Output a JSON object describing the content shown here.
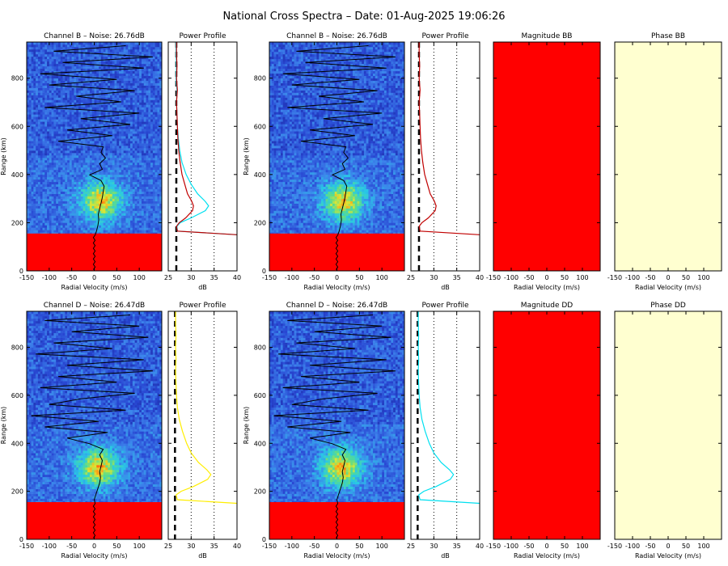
{
  "title": "National Cross Spectra – Date: 01-Aug-2025 19:06:26",
  "colors": {
    "spectra_low": "#1e40c8",
    "spectra_high": "#ff2a00",
    "no_data_fill": "#ff0000",
    "magnitude_fill": "#ff0000",
    "phase_fill": "#ffffd0",
    "profile_channel_b_left": "#c00000",
    "profile_channel_b_right": "#c00000",
    "profile_channel_b_overlay": "#00e0f0",
    "profile_channel_d_left": "#ffee00",
    "profile_channel_d_right": "#00e0f0",
    "noise_line": "#000000"
  },
  "chart_data": [
    {
      "type": "heatmap",
      "id": "spec-b-left",
      "title": "Channel B – Noise: 26.76dB",
      "xlabel": "Radial Velocity (m/s)",
      "ylabel": "Range (km)",
      "xlim": [
        -150,
        150
      ],
      "ylim": [
        0,
        950
      ],
      "xticks": [
        -150,
        -100,
        -50,
        0,
        50,
        100
      ],
      "yticks": [
        0,
        200,
        400,
        600,
        800
      ],
      "noise_db": 26.76,
      "no_data_below_km": 155,
      "signal_peak_range_km": 290,
      "signal_peak_velocity_ms": 15,
      "doppler_trace_velocity_ms": [
        5,
        8,
        10,
        9,
        12,
        15,
        18,
        20,
        22,
        15,
        -10,
        18,
        12,
        25,
        15,
        20,
        -80,
        40,
        -60,
        80,
        -30,
        100,
        -110,
        60,
        -40,
        90,
        -100,
        50,
        -120,
        110,
        -70,
        130,
        -90,
        70
      ]
    },
    {
      "type": "line",
      "id": "prof-b-left",
      "title": "Power Profile",
      "xlabel": "dB",
      "xlim": [
        25,
        40
      ],
      "ylim": [
        0,
        950
      ],
      "xticks": [
        25,
        30,
        35,
        40
      ],
      "noise_db": 26.76,
      "series": [
        {
          "range_km": [
            150,
            165,
            185,
            200,
            220,
            250,
            270,
            290,
            320,
            360,
            400,
            450,
            500,
            550,
            600,
            650,
            700,
            750,
            800,
            850,
            900,
            950
          ],
          "db": [
            40,
            27,
            26.8,
            27.4,
            28.8,
            30.3,
            30.5,
            30.1,
            29.2,
            28.6,
            28.0,
            27.6,
            27.3,
            27.1,
            27.0,
            26.9,
            26.8,
            27.0,
            26.8,
            26.9,
            26.8,
            26.8
          ]
        },
        {
          "range_km": [
            150,
            165,
            185,
            200,
            220,
            250,
            270,
            290,
            320,
            360,
            400,
            450,
            500,
            550,
            600,
            650,
            700,
            750,
            800,
            850,
            900,
            950
          ],
          "db": [
            40,
            27,
            26.9,
            27.6,
            30.0,
            33.1,
            33.8,
            33.0,
            31.4,
            30.0,
            28.9,
            28.0,
            27.5,
            27.2,
            27.0,
            26.9,
            26.8,
            26.9,
            26.7,
            26.8,
            26.7,
            26.7
          ]
        }
      ]
    },
    {
      "type": "heatmap",
      "id": "spec-b-right",
      "title": "Channel B – Noise: 26.76dB",
      "xlabel": "Radial Velocity (m/s)",
      "ylabel": "Range (km)",
      "xlim": [
        -150,
        150
      ],
      "ylim": [
        0,
        950
      ],
      "xticks": [
        -150,
        -100,
        -50,
        0,
        50,
        100
      ],
      "yticks": [
        0,
        200,
        400,
        600,
        800
      ],
      "noise_db": 26.76,
      "no_data_below_km": 155,
      "signal_peak_range_km": 290,
      "signal_peak_velocity_ms": 15,
      "doppler_trace_velocity_ms": [
        5,
        8,
        10,
        9,
        12,
        15,
        18,
        20,
        22,
        15,
        -10,
        18,
        12,
        25,
        15,
        20,
        -80,
        40,
        -60,
        80,
        -30,
        100,
        -110,
        60,
        -40,
        90,
        -100,
        50,
        -120,
        110,
        -70,
        130,
        -90,
        70
      ]
    },
    {
      "type": "line",
      "id": "prof-b-right",
      "title": "Power Profile",
      "xlabel": "dB",
      "xlim": [
        25,
        40
      ],
      "ylim": [
        0,
        950
      ],
      "xticks": [
        25,
        30,
        35,
        40
      ],
      "noise_db": 26.76,
      "series": [
        {
          "range_km": [
            150,
            165,
            185,
            200,
            220,
            250,
            270,
            290,
            320,
            360,
            400,
            450,
            500,
            550,
            600,
            650,
            700,
            750,
            800,
            850,
            900,
            950
          ],
          "db": [
            40,
            27,
            26.8,
            27.4,
            28.8,
            30.3,
            30.5,
            30.1,
            29.2,
            28.6,
            28.0,
            27.6,
            27.3,
            27.1,
            27.0,
            26.9,
            26.8,
            27.0,
            26.8,
            26.9,
            26.8,
            26.8
          ]
        }
      ]
    },
    {
      "type": "heatmap",
      "id": "mag-bb",
      "title": "Magnitude BB",
      "xlabel": "Radial Velocity (m/s)",
      "xlim": [
        -150,
        150
      ],
      "ylim": [
        0,
        950
      ],
      "xticks": [
        -150,
        -100,
        -50,
        0,
        50,
        100
      ],
      "uniform": true
    },
    {
      "type": "heatmap",
      "id": "phase-bb",
      "title": "Phase BB",
      "xlabel": "Radial Velocity (m/s)",
      "xlim": [
        -150,
        150
      ],
      "ylim": [
        0,
        950
      ],
      "xticks": [
        -150,
        -100,
        -50,
        0,
        50,
        100
      ],
      "uniform": true
    },
    {
      "type": "heatmap",
      "id": "spec-d-left",
      "title": "Channel D – Noise: 26.47dB",
      "xlabel": "Radial Velocity (m/s)",
      "ylabel": "Range (km)",
      "xlim": [
        -150,
        150
      ],
      "ylim": [
        0,
        950
      ],
      "xticks": [
        -150,
        -100,
        -50,
        0,
        50,
        100
      ],
      "yticks": [
        0,
        200,
        400,
        600,
        800
      ],
      "noise_db": 26.47,
      "no_data_below_km": 155,
      "signal_peak_range_km": 300,
      "signal_peak_velocity_ms": 10,
      "doppler_trace_velocity_ms": [
        0,
        4,
        8,
        12,
        14,
        12,
        15,
        18,
        12,
        20,
        -10,
        -60,
        30,
        -110,
        10,
        -140,
        70,
        -100,
        -30,
        90,
        -120,
        50,
        -80,
        130,
        -60,
        110,
        -130,
        40,
        -90,
        120,
        -50,
        100,
        -110,
        80
      ]
    },
    {
      "type": "line",
      "id": "prof-d-left",
      "title": "Power Profile",
      "xlabel": "dB",
      "xlim": [
        25,
        40
      ],
      "ylim": [
        0,
        950
      ],
      "xticks": [
        25,
        30,
        35,
        40
      ],
      "noise_db": 26.47,
      "series": [
        {
          "range_km": [
            150,
            165,
            185,
            200,
            220,
            250,
            270,
            290,
            320,
            360,
            400,
            450,
            500,
            550,
            600,
            650,
            700,
            750,
            800,
            850,
            900,
            950
          ],
          "db": [
            40,
            27,
            26.7,
            27.8,
            30.5,
            33.6,
            34.3,
            33.4,
            31.6,
            30.0,
            29.0,
            28.1,
            27.4,
            27.0,
            26.8,
            26.7,
            26.6,
            26.7,
            26.6,
            26.7,
            26.6,
            26.6
          ]
        }
      ]
    },
    {
      "type": "line",
      "id": "prof-d-right",
      "title": "Power Profile",
      "xlabel": "dB",
      "xlim": [
        25,
        40
      ],
      "ylim": [
        0,
        950
      ],
      "xticks": [
        25,
        30,
        35,
        40
      ],
      "noise_db": 26.47,
      "series": [
        {
          "range_km": [
            150,
            165,
            185,
            200,
            220,
            250,
            270,
            290,
            320,
            360,
            400,
            450,
            500,
            550,
            600,
            650,
            700,
            750,
            800,
            850,
            900,
            950
          ],
          "db": [
            40,
            27,
            26.7,
            27.8,
            30.5,
            33.6,
            34.3,
            33.4,
            31.6,
            30.0,
            29.0,
            28.1,
            27.4,
            27.0,
            26.8,
            26.7,
            26.6,
            26.7,
            26.6,
            26.7,
            26.6,
            26.6
          ]
        }
      ]
    },
    {
      "type": "heatmap",
      "id": "spec-d-right",
      "title": "Channel D – Noise: 26.47dB",
      "xlabel": "Radial Velocity (m/s)",
      "ylabel": "Range (km)",
      "xlim": [
        -150,
        150
      ],
      "ylim": [
        0,
        950
      ],
      "xticks": [
        -150,
        -100,
        -50,
        0,
        50,
        100
      ],
      "yticks": [
        0,
        200,
        400,
        600,
        800
      ],
      "noise_db": 26.47,
      "no_data_below_km": 155,
      "signal_peak_range_km": 300,
      "signal_peak_velocity_ms": 10,
      "doppler_trace_velocity_ms": [
        0,
        4,
        8,
        12,
        14,
        12,
        15,
        18,
        12,
        20,
        -10,
        -60,
        30,
        -110,
        10,
        -140,
        70,
        -100,
        -30,
        90,
        -120,
        50,
        -80,
        130,
        -60,
        110,
        -130,
        40,
        -90,
        120,
        -50,
        100,
        -110,
        80
      ]
    },
    {
      "type": "heatmap",
      "id": "mag-dd",
      "title": "Magnitude DD",
      "xlabel": "Radial Velocity (m/s)",
      "xlim": [
        -150,
        150
      ],
      "ylim": [
        0,
        950
      ],
      "xticks": [
        -150,
        -100,
        -50,
        0,
        50,
        100
      ],
      "uniform": true
    },
    {
      "type": "heatmap",
      "id": "phase-dd",
      "title": "Phase DD",
      "xlabel": "Radial Velocity (m/s)",
      "xlim": [
        -150,
        150
      ],
      "ylim": [
        0,
        950
      ],
      "xticks": [
        -150,
        -100,
        -50,
        0,
        50,
        100
      ],
      "uniform": true
    }
  ]
}
